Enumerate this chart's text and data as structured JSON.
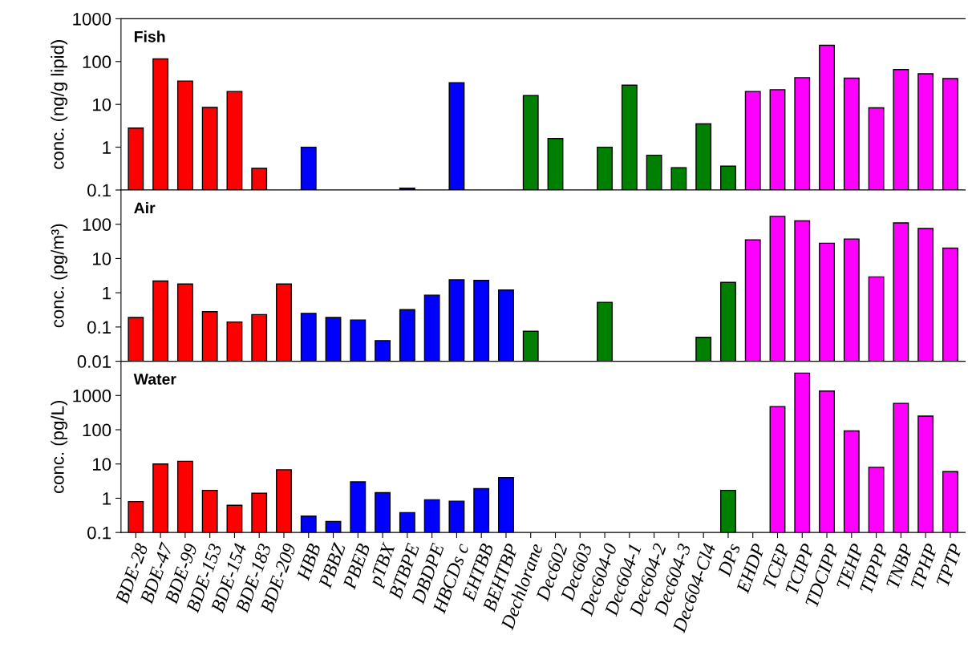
{
  "chart_data": [
    {
      "type": "bar",
      "title": "Fish",
      "ylabel": "conc. (ng/g lipid)",
      "log": true,
      "grid": false,
      "tick_labels": "y",
      "categories": [
        "BDE-28",
        "BDE-47",
        "BDE-99",
        "BDE-153",
        "BDE-154",
        "BDE-183",
        "BDE-209",
        "HBB",
        "PBBZ",
        "PBEB",
        "pTBX",
        "BTBPE",
        "DBDPE",
        "HBCDs c",
        "EHTBB",
        "BEHTBP",
        "Dechlorane",
        "Dec602",
        "Dec603",
        "Dec604-0",
        "Dec604-1",
        "Dec604-2",
        "Dec604-3",
        "Dec604-Cl4",
        "DPs",
        "EHDP",
        "TCEP",
        "TCIPP",
        "TDCIPP",
        "TEHP",
        "TIPPP",
        "TNBP",
        "TPHP",
        "TPTP"
      ],
      "colors": [
        "#ff0000",
        "#ff0000",
        "#ff0000",
        "#ff0000",
        "#ff0000",
        "#ff0000",
        "#ff0000",
        "#0000ff",
        "#0000ff",
        "#0000ff",
        "#0000ff",
        "#0000ff",
        "#0000ff",
        "#0000ff",
        "#0000ff",
        "#0000ff",
        "#008000",
        "#008000",
        "#008000",
        "#008000",
        "#008000",
        "#008000",
        "#008000",
        "#008000",
        "#008000",
        "#ff00ff",
        "#ff00ff",
        "#ff00ff",
        "#ff00ff",
        "#ff00ff",
        "#ff00ff",
        "#ff00ff",
        "#ff00ff",
        "#ff00ff"
      ],
      "values": [
        2.8,
        115,
        35,
        8.5,
        20,
        0.32,
        null,
        1.0,
        null,
        null,
        null,
        0.11,
        null,
        32,
        null,
        null,
        16,
        1.6,
        null,
        1.0,
        28,
        0.65,
        0.33,
        3.5,
        0.36,
        20,
        22,
        42,
        240,
        41,
        8.3,
        65,
        52,
        40
      ],
      "ylim": [
        0.1,
        1000
      ],
      "yticks": [
        0.1,
        1,
        10,
        100,
        1000
      ]
    },
    {
      "type": "bar",
      "title": "Air",
      "ylabel": "conc. (pg/m³)",
      "log": true,
      "grid": false,
      "tick_labels": "y",
      "categories": [
        "BDE-28",
        "BDE-47",
        "BDE-99",
        "BDE-153",
        "BDE-154",
        "BDE-183",
        "BDE-209",
        "HBB",
        "PBBZ",
        "PBEB",
        "pTBX",
        "BTBPE",
        "DBDPE",
        "HBCDs c",
        "EHTBB",
        "BEHTBP",
        "Dechlorane",
        "Dec602",
        "Dec603",
        "Dec604-0",
        "Dec604-1",
        "Dec604-2",
        "Dec604-3",
        "Dec604-Cl4",
        "DPs",
        "EHDP",
        "TCEP",
        "TCIPP",
        "TDCIPP",
        "TEHP",
        "TIPPP",
        "TNBP",
        "TPHP",
        "TPTP"
      ],
      "colors": [
        "#ff0000",
        "#ff0000",
        "#ff0000",
        "#ff0000",
        "#ff0000",
        "#ff0000",
        "#ff0000",
        "#0000ff",
        "#0000ff",
        "#0000ff",
        "#0000ff",
        "#0000ff",
        "#0000ff",
        "#0000ff",
        "#0000ff",
        "#0000ff",
        "#008000",
        "#008000",
        "#008000",
        "#008000",
        "#008000",
        "#008000",
        "#008000",
        "#008000",
        "#008000",
        "#ff00ff",
        "#ff00ff",
        "#ff00ff",
        "#ff00ff",
        "#ff00ff",
        "#ff00ff",
        "#ff00ff",
        "#ff00ff",
        "#ff00ff"
      ],
      "values": [
        0.19,
        2.2,
        1.8,
        0.28,
        0.14,
        0.23,
        1.8,
        0.25,
        0.19,
        0.16,
        0.04,
        0.32,
        0.85,
        2.4,
        2.3,
        1.2,
        0.075,
        null,
        null,
        0.52,
        null,
        null,
        null,
        0.05,
        2.0,
        35,
        170,
        125,
        28,
        37,
        2.9,
        110,
        75,
        20
      ],
      "ylim": [
        0.01,
        1000
      ],
      "yticks": [
        0.01,
        0.1,
        1,
        10,
        100
      ]
    },
    {
      "type": "bar",
      "title": "Water",
      "ylabel": "conc. (pg/L)",
      "log": true,
      "grid": false,
      "categories": [
        "BDE-28",
        "BDE-47",
        "BDE-99",
        "BDE-153",
        "BDE-154",
        "BDE-183",
        "BDE-209",
        "HBB",
        "PBBZ",
        "PBEB",
        "pTBX",
        "BTBPE",
        "DBDPE",
        "HBCDs c",
        "EHTBB",
        "BEHTBP",
        "Dechlorane",
        "Dec602",
        "Dec603",
        "Dec604-0",
        "Dec604-1",
        "Dec604-2",
        "Dec604-3",
        "Dec604-Cl4",
        "DPs",
        "EHDP",
        "TCEP",
        "TCIPP",
        "TDCIPP",
        "TEHP",
        "TIPPP",
        "TNBP",
        "TPHP",
        "TPTP"
      ],
      "colors": [
        "#ff0000",
        "#ff0000",
        "#ff0000",
        "#ff0000",
        "#ff0000",
        "#ff0000",
        "#ff0000",
        "#0000ff",
        "#0000ff",
        "#0000ff",
        "#0000ff",
        "#0000ff",
        "#0000ff",
        "#0000ff",
        "#0000ff",
        "#0000ff",
        "#008000",
        "#008000",
        "#008000",
        "#008000",
        "#008000",
        "#008000",
        "#008000",
        "#008000",
        "#008000",
        "#ff00ff",
        "#ff00ff",
        "#ff00ff",
        "#ff00ff",
        "#ff00ff",
        "#ff00ff",
        "#ff00ff",
        "#ff00ff",
        "#ff00ff"
      ],
      "values": [
        0.8,
        10,
        12,
        1.7,
        0.62,
        1.4,
        6.8,
        0.3,
        0.21,
        3.0,
        1.45,
        0.38,
        0.9,
        0.82,
        1.9,
        4.0,
        null,
        null,
        null,
        null,
        null,
        null,
        null,
        null,
        1.7,
        null,
        470,
        4500,
        1350,
        92,
        8,
        590,
        250,
        6
      ],
      "ylim": [
        0.1,
        10000
      ],
      "yticks": [
        0.1,
        1,
        10,
        100,
        1000
      ]
    }
  ]
}
